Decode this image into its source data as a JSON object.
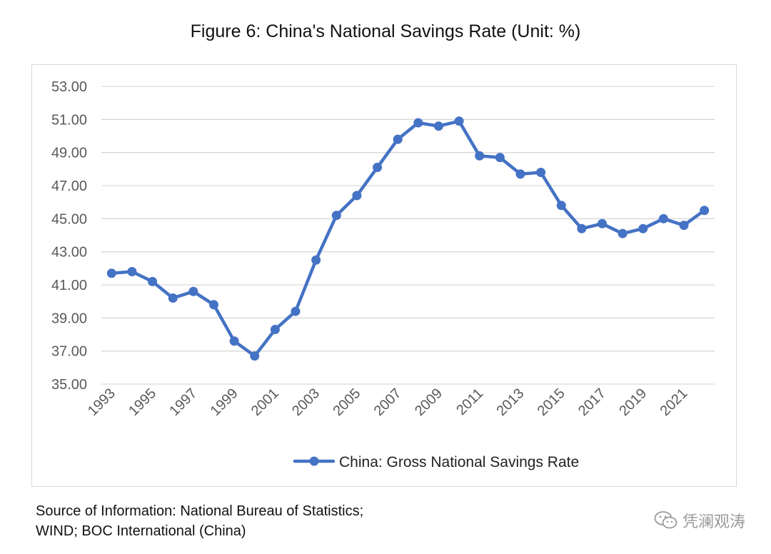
{
  "title": "Figure 6: China's National Savings Rate (Unit: %)",
  "source": {
    "line1": "Source of Information: National Bureau of Statistics;",
    "line2": "WIND; BOC International (China)"
  },
  "watermark": {
    "text": "凭澜观涛",
    "icon": "wechat-icon"
  },
  "colors": {
    "series": "#4472c4",
    "grid": "#d9d9d9",
    "tick_text": "#595959"
  },
  "chart_data": {
    "type": "line",
    "title": "Figure 6: China's National Savings Rate (Unit: %)",
    "xlabel": "",
    "ylabel": "",
    "x": [
      1993,
      1994,
      1995,
      1996,
      1997,
      1998,
      1999,
      2000,
      2001,
      2002,
      2003,
      2004,
      2005,
      2006,
      2007,
      2008,
      2009,
      2010,
      2011,
      2012,
      2013,
      2014,
      2015,
      2016,
      2017,
      2018,
      2019,
      2020,
      2021,
      2022
    ],
    "x_tick_labels": [
      "1993",
      "1995",
      "1997",
      "1999",
      "2001",
      "2003",
      "2005",
      "2007",
      "2009",
      "2011",
      "2013",
      "2015",
      "2017",
      "2019",
      "2021"
    ],
    "y_tick_labels": [
      "53.00",
      "51.00",
      "49.00",
      "47.00",
      "45.00",
      "43.00",
      "41.00",
      "39.00",
      "37.00",
      "35.00"
    ],
    "ylim": [
      35,
      53
    ],
    "grid": true,
    "legend": "bottom",
    "series": [
      {
        "name": "China: Gross National Savings Rate",
        "values": [
          41.7,
          41.8,
          41.2,
          40.2,
          40.6,
          39.8,
          37.6,
          36.7,
          38.3,
          39.4,
          42.5,
          45.2,
          46.4,
          48.1,
          49.8,
          50.8,
          50.6,
          50.9,
          48.8,
          48.7,
          47.7,
          47.8,
          45.8,
          44.4,
          44.7,
          44.1,
          44.4,
          45.0,
          44.6,
          45.5
        ]
      }
    ]
  }
}
